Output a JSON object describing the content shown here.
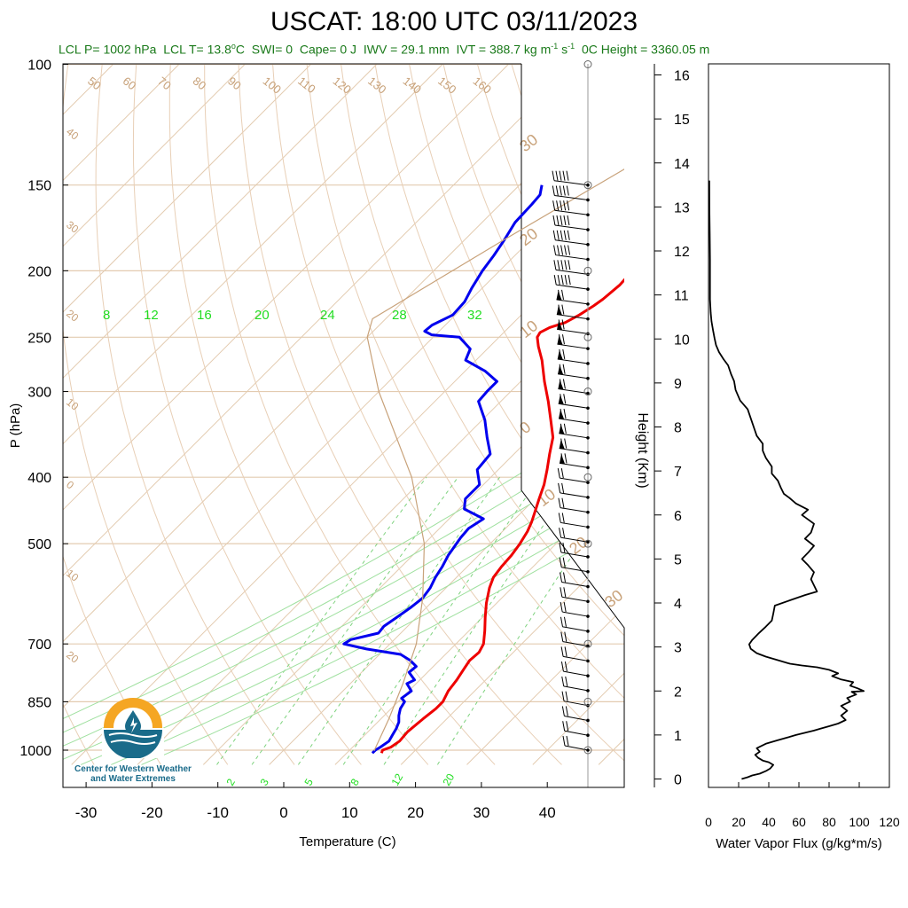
{
  "header": {
    "title": "USCAT: 18:00 UTC 03/11/2023",
    "subtitle_parts": [
      "LCL P= 1002 hPa",
      "LCL T= 13.8",
      "SWI= 0",
      "Cape= 0 J",
      "IWV = 29.1 mm",
      "IVT = 388.7 kg m",
      "0",
      "C Height = 3360.05 m"
    ]
  },
  "logo": {
    "line1": "Center for Western Weather",
    "line2": "and Water Extremes",
    "icon": "cw3e-sun-water-drop-icon"
  },
  "chart_data": [
    {
      "type": "line",
      "chart": "skew-t log-p sounding",
      "xlabel": "Temperature (C)",
      "ylabel": "P (hPa)",
      "xlim": [
        -34,
        49
      ],
      "ylim": [
        1050,
        100
      ],
      "y_scale": "log",
      "x_ticks": [
        -30,
        -20,
        -10,
        0,
        10,
        20,
        30,
        40
      ],
      "y_ticks": [
        100,
        150,
        200,
        250,
        300,
        400,
        500,
        700,
        850,
        1000
      ],
      "skew": "45-degree isotherms",
      "dry_adiabat_labels": [
        "50",
        "60",
        "70",
        "80",
        "90",
        "100",
        "110",
        "120",
        "130",
        "140",
        "150",
        "160"
      ],
      "left_edge_labels": [
        "40",
        "30",
        "20",
        "10",
        "0",
        "10",
        "20"
      ],
      "right_edge_labels": [
        "30",
        "20",
        "10",
        "0",
        "10",
        "20",
        "30"
      ],
      "mixing_ratio_labels_upper": [
        "8",
        "12",
        "16",
        "20",
        "24",
        "28",
        "32"
      ],
      "mixing_ratio_labels_lower": [
        "2",
        "3",
        "5",
        "8",
        "12",
        "20"
      ],
      "series": [
        {
          "name": "Temperature",
          "color": "#ee0000",
          "points": [
            [
              1010,
              15.3
            ],
            [
              1000,
              15.0
            ],
            [
              990,
              15.8
            ],
            [
              970,
              16.2
            ],
            [
              940,
              16.0
            ],
            [
              900,
              16.4
            ],
            [
              870,
              16.8
            ],
            [
              850,
              16.8
            ],
            [
              820,
              16.0
            ],
            [
              790,
              15.6
            ],
            [
              760,
              15.0
            ],
            [
              740,
              14.6
            ],
            [
              720,
              14.8
            ],
            [
              700,
              14.2
            ],
            [
              670,
              12.4
            ],
            [
              640,
              10.4
            ],
            [
              610,
              8.4
            ],
            [
              580,
              6.6
            ],
            [
              560,
              5.6
            ],
            [
              540,
              5.2
            ],
            [
              520,
              5.0
            ],
            [
              500,
              4.5
            ],
            [
              480,
              3.8
            ],
            [
              465,
              3.0
            ],
            [
              450,
              2.0
            ],
            [
              430,
              0.6
            ],
            [
              410,
              -0.8
            ],
            [
              390,
              -2.6
            ],
            [
              370,
              -4.6
            ],
            [
              350,
              -6.6
            ],
            [
              330,
              -9.6
            ],
            [
              310,
              -12.8
            ],
            [
              290,
              -16.4
            ],
            [
              270,
              -20.0
            ],
            [
              258,
              -22.6
            ],
            [
              250,
              -24.2
            ],
            [
              246,
              -24.5
            ],
            [
              242,
              -23.8
            ],
            [
              238,
              -22.2
            ],
            [
              232,
              -21.2
            ],
            [
              225,
              -20.4
            ],
            [
              220,
              -20.0
            ],
            [
              210,
              -19.6
            ],
            [
              200,
              -19.8
            ],
            [
              190,
              -20.4
            ],
            [
              180,
              -22.2
            ],
            [
              170,
              -24.4
            ],
            [
              162,
              -26.6
            ],
            [
              155,
              -28.8
            ],
            [
              150,
              -30.6
            ]
          ]
        },
        {
          "name": "Dewpoint",
          "color": "#0000ee",
          "points": [
            [
              1010,
              13.9
            ],
            [
              1000,
              13.9
            ],
            [
              990,
              14.2
            ],
            [
              970,
              14.6
            ],
            [
              950,
              14.2
            ],
            [
              930,
              13.8
            ],
            [
              910,
              13.2
            ],
            [
              890,
              12.2
            ],
            [
              870,
              11.4
            ],
            [
              850,
              11.0
            ],
            [
              840,
              10.0
            ],
            [
              820,
              10.4
            ],
            [
              800,
              8.6
            ],
            [
              790,
              9.2
            ],
            [
              770,
              7.2
            ],
            [
              755,
              7.4
            ],
            [
              740,
              5.6
            ],
            [
              725,
              3.2
            ],
            [
              712,
              -2.8
            ],
            [
              700,
              -7.0
            ],
            [
              690,
              -6.6
            ],
            [
              675,
              -3.4
            ],
            [
              660,
              -3.6
            ],
            [
              640,
              -3.0
            ],
            [
              620,
              -2.4
            ],
            [
              600,
              -2.0
            ],
            [
              580,
              -2.4
            ],
            [
              560,
              -3.2
            ],
            [
              540,
              -3.8
            ],
            [
              520,
              -4.6
            ],
            [
              505,
              -5.0
            ],
            [
              490,
              -5.4
            ],
            [
              475,
              -5.6
            ],
            [
              460,
              -4.8
            ],
            [
              445,
              -9.2
            ],
            [
              430,
              -10.6
            ],
            [
              410,
              -10.6
            ],
            [
              390,
              -13.2
            ],
            [
              370,
              -13.6
            ],
            [
              350,
              -16.6
            ],
            [
              330,
              -19.6
            ],
            [
              310,
              -23.4
            ],
            [
              300,
              -23.6
            ],
            [
              290,
              -23.6
            ],
            [
              280,
              -27.0
            ],
            [
              270,
              -31.6
            ],
            [
              260,
              -32.6
            ],
            [
              250,
              -36.0
            ],
            [
              248,
              -40.6
            ],
            [
              245,
              -42.2
            ],
            [
              240,
              -42.0
            ],
            [
              232,
              -40.4
            ],
            [
              222,
              -40.6
            ],
            [
              212,
              -41.6
            ],
            [
              200,
              -42.6
            ],
            [
              190,
              -43.2
            ],
            [
              180,
              -44.0
            ],
            [
              170,
              -45.0
            ],
            [
              160,
              -45.2
            ],
            [
              155,
              -45.4
            ],
            [
              150,
              -46.6
            ]
          ]
        },
        {
          "name": "Parcel",
          "color": "#c8a27a",
          "points": [
            [
              1002,
              13.8
            ],
            [
              900,
              11.2
            ],
            [
              800,
              8.0
            ],
            [
              700,
              4.0
            ],
            [
              600,
              -2.0
            ],
            [
              500,
              -10.0
            ],
            [
              400,
              -22.0
            ],
            [
              300,
              -40.0
            ],
            [
              250,
              -50.0
            ],
            [
              235,
              -52.0
            ],
            [
              180,
              -44.0
            ],
            [
              140,
              -36.0
            ]
          ]
        }
      ],
      "wind_barbs": {
        "count": 39,
        "pressure_top": 150,
        "pressure_bottom": 1000
      }
    },
    {
      "type": "line",
      "chart": "water vapor flux profile",
      "xlabel": "Water Vapor Flux (g/kg*m/s)",
      "ylabel": "Height (Km)",
      "xlim": [
        0,
        120
      ],
      "ylim": [
        -0.2,
        16.4
      ],
      "x_ticks": [
        0,
        20,
        40,
        60,
        80,
        100,
        120
      ],
      "y_ticks": [
        0,
        1,
        2,
        3,
        4,
        5,
        6,
        7,
        8,
        9,
        10,
        11,
        12,
        13,
        14,
        15,
        16
      ],
      "series": [
        {
          "name": "Water Vapor Flux",
          "color": "#000000",
          "points": [
            [
              22,
              0.0
            ],
            [
              26,
              0.04
            ],
            [
              29,
              0.08
            ],
            [
              34,
              0.12
            ],
            [
              38,
              0.18
            ],
            [
              41,
              0.24
            ],
            [
              43,
              0.32
            ],
            [
              40,
              0.38
            ],
            [
              36,
              0.42
            ],
            [
              33,
              0.48
            ],
            [
              31,
              0.55
            ],
            [
              34,
              0.62
            ],
            [
              32,
              0.7
            ],
            [
              38,
              0.8
            ],
            [
              46,
              0.88
            ],
            [
              52,
              0.94
            ],
            [
              58,
              1.0
            ],
            [
              64,
              1.05
            ],
            [
              70,
              1.1
            ],
            [
              74,
              1.14
            ],
            [
              80,
              1.2
            ],
            [
              86,
              1.26
            ],
            [
              91,
              1.34
            ],
            [
              88,
              1.44
            ],
            [
              92,
              1.55
            ],
            [
              88,
              1.66
            ],
            [
              94,
              1.76
            ],
            [
              92,
              1.84
            ],
            [
              98,
              1.92
            ],
            [
              95,
              1.98
            ],
            [
              103,
              2.0
            ],
            [
              99,
              2.06
            ],
            [
              94,
              2.12
            ],
            [
              96,
              2.2
            ],
            [
              88,
              2.26
            ],
            [
              82,
              2.34
            ],
            [
              86,
              2.4
            ],
            [
              80,
              2.48
            ],
            [
              72,
              2.54
            ],
            [
              62,
              2.58
            ],
            [
              54,
              2.62
            ],
            [
              46,
              2.7
            ],
            [
              38,
              2.78
            ],
            [
              32,
              2.86
            ],
            [
              28,
              2.96
            ],
            [
              27,
              3.06
            ],
            [
              29,
              3.16
            ],
            [
              33,
              3.3
            ],
            [
              38,
              3.46
            ],
            [
              42,
              3.6
            ],
            [
              43,
              3.76
            ],
            [
              44,
              3.94
            ],
            [
              54,
              4.06
            ],
            [
              64,
              4.18
            ],
            [
              72,
              4.26
            ],
            [
              70,
              4.4
            ],
            [
              68,
              4.54
            ],
            [
              70,
              4.7
            ],
            [
              66,
              4.86
            ],
            [
              62,
              5.0
            ],
            [
              66,
              5.14
            ],
            [
              70,
              5.3
            ],
            [
              64,
              5.46
            ],
            [
              68,
              5.6
            ],
            [
              70,
              5.8
            ],
            [
              62,
              6.0
            ],
            [
              66,
              6.12
            ],
            [
              58,
              6.26
            ],
            [
              54,
              6.38
            ],
            [
              50,
              6.48
            ],
            [
              48,
              6.62
            ],
            [
              46,
              6.78
            ],
            [
              42,
              6.94
            ],
            [
              42,
              7.1
            ],
            [
              38,
              7.3
            ],
            [
              36,
              7.46
            ],
            [
              36,
              7.62
            ],
            [
              32,
              7.8
            ],
            [
              30,
              8.0
            ],
            [
              28,
              8.2
            ],
            [
              26,
              8.4
            ],
            [
              21,
              8.6
            ],
            [
              18,
              8.84
            ],
            [
              17,
              9.04
            ],
            [
              15,
              9.2
            ],
            [
              13,
              9.4
            ],
            [
              10,
              9.54
            ],
            [
              7,
              9.7
            ],
            [
              5,
              9.86
            ],
            [
              4,
              10.02
            ],
            [
              3,
              10.2
            ],
            [
              2,
              10.4
            ],
            [
              1.5,
              10.6
            ],
            [
              1,
              10.9
            ],
            [
              1,
              11.3
            ],
            [
              1,
              11.8
            ],
            [
              0.8,
              12.4
            ],
            [
              0.6,
              13.0
            ],
            [
              0.5,
              13.6
            ]
          ]
        }
      ]
    }
  ]
}
